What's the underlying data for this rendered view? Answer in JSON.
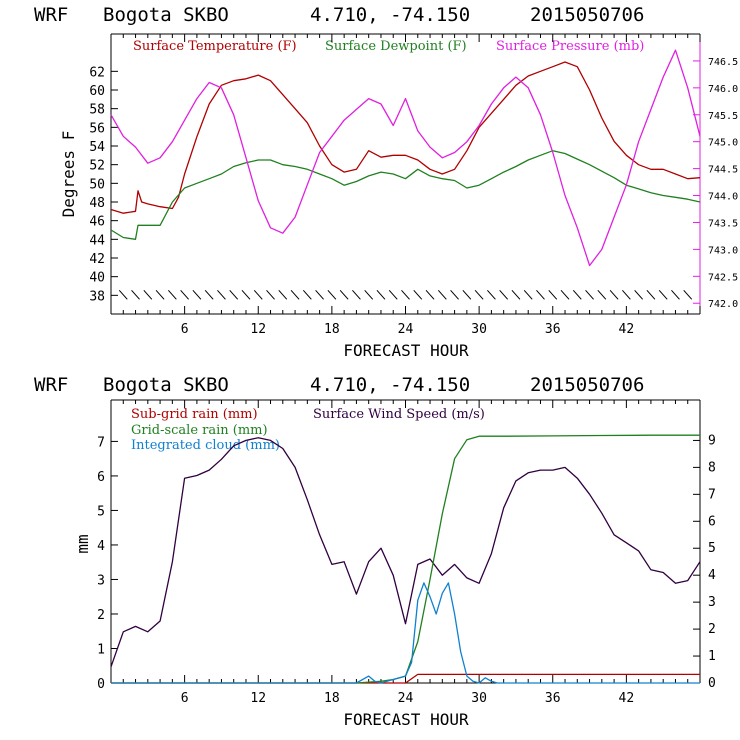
{
  "colors": {
    "temperature": "#b00000",
    "dewpoint": "#208020",
    "pressure": "#e020e0",
    "subgrid_rain": "#b00000",
    "gridscale_rain": "#208020",
    "integrated_cloud": "#1080d0",
    "wind_speed": "#300040",
    "axis": "#000000",
    "frame_right_top": "#e020e0"
  },
  "chart_data": [
    {
      "type": "line",
      "header": {
        "model": "WRF",
        "station": "Bogota SKBO",
        "coords": "4.710, -74.150",
        "init": "2015050706"
      },
      "xlabel": "FORECAST HOUR",
      "ylabel": "Degrees F",
      "xlim": [
        0,
        48
      ],
      "xticks": [
        6,
        12,
        18,
        24,
        30,
        36,
        42
      ],
      "ylim": [
        36,
        66
      ],
      "yticks": [
        38,
        40,
        42,
        44,
        46,
        48,
        50,
        52,
        54,
        56,
        58,
        60,
        62
      ],
      "y2lim": [
        741.8,
        747.0
      ],
      "y2ticks": [
        "742.0",
        "742.5",
        "743.0",
        "743.5",
        "744.0",
        "744.5",
        "745.0",
        "745.5",
        "746.0",
        "746.5"
      ],
      "legend": [
        "Surface Temperature (F)",
        "Surface Dewpoint (F)",
        "Surface Pressure (mb)"
      ],
      "wind_barbs_at_y": 38,
      "series": [
        {
          "name": "Surface Temperature (F)",
          "axis": "left",
          "x": [
            0,
            1,
            2,
            2.2,
            2.5,
            3,
            4,
            5,
            5.5,
            6,
            7,
            8,
            9,
            10,
            11,
            12,
            13,
            14,
            15,
            16,
            17,
            18,
            19,
            20,
            21,
            22,
            23,
            24,
            25,
            26,
            27,
            28,
            29,
            30,
            31,
            32,
            33,
            34,
            35,
            36,
            37,
            38,
            39,
            40,
            41,
            42,
            43,
            44,
            45,
            46,
            47,
            48
          ],
          "y": [
            47.2,
            46.8,
            47.0,
            49.2,
            48.0,
            47.8,
            47.5,
            47.3,
            48.5,
            51.0,
            55.0,
            58.5,
            60.5,
            61.0,
            61.2,
            61.6,
            61.0,
            59.5,
            58.0,
            56.5,
            54.0,
            52.0,
            51.2,
            51.5,
            53.5,
            52.8,
            53.0,
            53.0,
            52.5,
            51.5,
            51.0,
            51.5,
            53.5,
            56.0,
            57.5,
            59.0,
            60.5,
            61.5,
            62.0,
            62.5,
            63.0,
            62.5,
            60.0,
            57.0,
            54.5,
            53.0,
            52.0,
            51.5,
            51.5,
            51.0,
            50.5,
            50.6
          ]
        },
        {
          "name": "Surface Dewpoint (F)",
          "axis": "left",
          "x": [
            0,
            1,
            2,
            2.2,
            3,
            4,
            5,
            6,
            7,
            8,
            9,
            10,
            11,
            12,
            13,
            14,
            15,
            16,
            17,
            18,
            19,
            20,
            21,
            22,
            23,
            24,
            25,
            26,
            27,
            28,
            29,
            30,
            31,
            32,
            33,
            34,
            35,
            36,
            37,
            38,
            39,
            40,
            41,
            42,
            43,
            44,
            45,
            46,
            47,
            48
          ],
          "y": [
            45.0,
            44.2,
            44.0,
            45.5,
            45.5,
            45.5,
            48.0,
            49.5,
            50.0,
            50.5,
            51.0,
            51.8,
            52.2,
            52.5,
            52.5,
            52.0,
            51.8,
            51.5,
            51.0,
            50.5,
            49.8,
            50.2,
            50.8,
            51.2,
            51.0,
            50.5,
            51.5,
            50.8,
            50.5,
            50.3,
            49.5,
            49.8,
            50.5,
            51.2,
            51.8,
            52.5,
            53.0,
            53.5,
            53.2,
            52.6,
            52.0,
            51.3,
            50.6,
            49.8,
            49.4,
            49.0,
            48.7,
            48.5,
            48.3,
            48.0
          ]
        },
        {
          "name": "Surface Pressure (mb)",
          "axis": "right",
          "x": [
            0,
            1,
            2,
            3,
            4,
            5,
            6,
            7,
            8,
            9,
            10,
            11,
            12,
            13,
            14,
            15,
            16,
            17,
            18,
            19,
            20,
            21,
            22,
            23,
            24,
            25,
            26,
            27,
            28,
            29,
            30,
            31,
            32,
            33,
            34,
            35,
            36,
            37,
            38,
            39,
            40,
            41,
            42,
            43,
            44,
            45,
            46,
            47,
            48
          ],
          "y": [
            745.5,
            745.1,
            744.9,
            744.6,
            744.7,
            745.0,
            745.4,
            745.8,
            746.1,
            746.0,
            745.5,
            744.7,
            743.9,
            743.4,
            743.3,
            743.6,
            744.2,
            744.8,
            745.1,
            745.4,
            745.6,
            745.8,
            745.7,
            745.3,
            745.8,
            745.2,
            744.9,
            744.7,
            744.8,
            745.0,
            745.3,
            745.7,
            746.0,
            746.2,
            746.0,
            745.5,
            744.8,
            744.0,
            743.4,
            742.7,
            743.0,
            743.6,
            744.2,
            745.0,
            745.6,
            746.2,
            746.7,
            746.0,
            745.1
          ]
        }
      ]
    },
    {
      "type": "line",
      "header": {
        "model": "WRF",
        "station": "Bogota SKBO",
        "coords": "4.710, -74.150",
        "init": "2015050706"
      },
      "xlabel": "FORECAST HOUR",
      "ylabel": "mm",
      "xlim": [
        0,
        48
      ],
      "xticks": [
        6,
        12,
        18,
        24,
        30,
        36,
        42
      ],
      "ylim": [
        0,
        8.2
      ],
      "yticks": [
        0,
        1,
        2,
        3,
        4,
        5,
        6,
        7
      ],
      "y2lim": [
        0,
        10.5
      ],
      "y2ticks": [
        0,
        1,
        2,
        3,
        4,
        5,
        6,
        7,
        8,
        9
      ],
      "legend": [
        "Sub-grid rain (mm)",
        "Surface Wind Speed (m/s)",
        "Grid-scale rain (mm)",
        "Integrated cloud (mm)"
      ],
      "series": [
        {
          "name": "Sub-grid rain (mm)",
          "axis": "left",
          "x": [
            0,
            24,
            25,
            48
          ],
          "y": [
            0,
            0,
            0.25,
            0.25
          ]
        },
        {
          "name": "Surface Wind Speed (m/s)",
          "axis": "right",
          "x": [
            0,
            1,
            2,
            3,
            4,
            5,
            6,
            7,
            8,
            9,
            10,
            11,
            12,
            13,
            14,
            15,
            16,
            17,
            18,
            19,
            20,
            21,
            22,
            23,
            24,
            25,
            26,
            27,
            28,
            29,
            30,
            31,
            32,
            33,
            34,
            35,
            36,
            37,
            38,
            39,
            40,
            41,
            42,
            43,
            44,
            45,
            46,
            47,
            48
          ],
          "y": [
            0.6,
            1.9,
            2.1,
            1.9,
            2.3,
            4.5,
            7.6,
            7.7,
            7.9,
            8.3,
            8.8,
            9.0,
            9.1,
            9.0,
            8.7,
            8.0,
            6.8,
            5.5,
            4.4,
            4.5,
            3.3,
            4.5,
            5.0,
            4.0,
            2.2,
            4.4,
            4.6,
            4.0,
            4.4,
            3.9,
            3.7,
            4.8,
            6.5,
            7.5,
            7.8,
            7.9,
            7.9,
            8.0,
            7.6,
            7.0,
            6.3,
            5.5,
            5.2,
            4.9,
            4.2,
            4.1,
            3.7,
            3.8,
            4.5
          ]
        },
        {
          "name": "Grid-scale rain (mm)",
          "axis": "left",
          "x": [
            0,
            20,
            22,
            23,
            24,
            25,
            26,
            27,
            28,
            29,
            30,
            31,
            32,
            36,
            40,
            44,
            48
          ],
          "y": [
            0,
            0,
            0.05,
            0.1,
            0.2,
            1.2,
            3.0,
            4.9,
            6.5,
            7.05,
            7.15,
            7.15,
            7.15,
            7.16,
            7.17,
            7.18,
            7.18
          ]
        },
        {
          "name": "Integrated cloud (mm)",
          "axis": "left",
          "x": [
            0,
            20,
            21,
            21.5,
            22,
            23,
            24,
            24.5,
            25,
            25.5,
            26,
            26.5,
            27,
            27.5,
            28,
            28.5,
            29,
            29.5,
            30,
            30.5,
            31,
            31.5,
            32,
            48
          ],
          "y": [
            0,
            0,
            0.2,
            0.05,
            0,
            0.1,
            0.2,
            0.6,
            2.4,
            2.9,
            2.5,
            2.0,
            2.6,
            2.9,
            2.0,
            0.9,
            0.2,
            0.05,
            0.0,
            0.15,
            0.05,
            0.0,
            0.0,
            0.0
          ]
        }
      ]
    }
  ]
}
